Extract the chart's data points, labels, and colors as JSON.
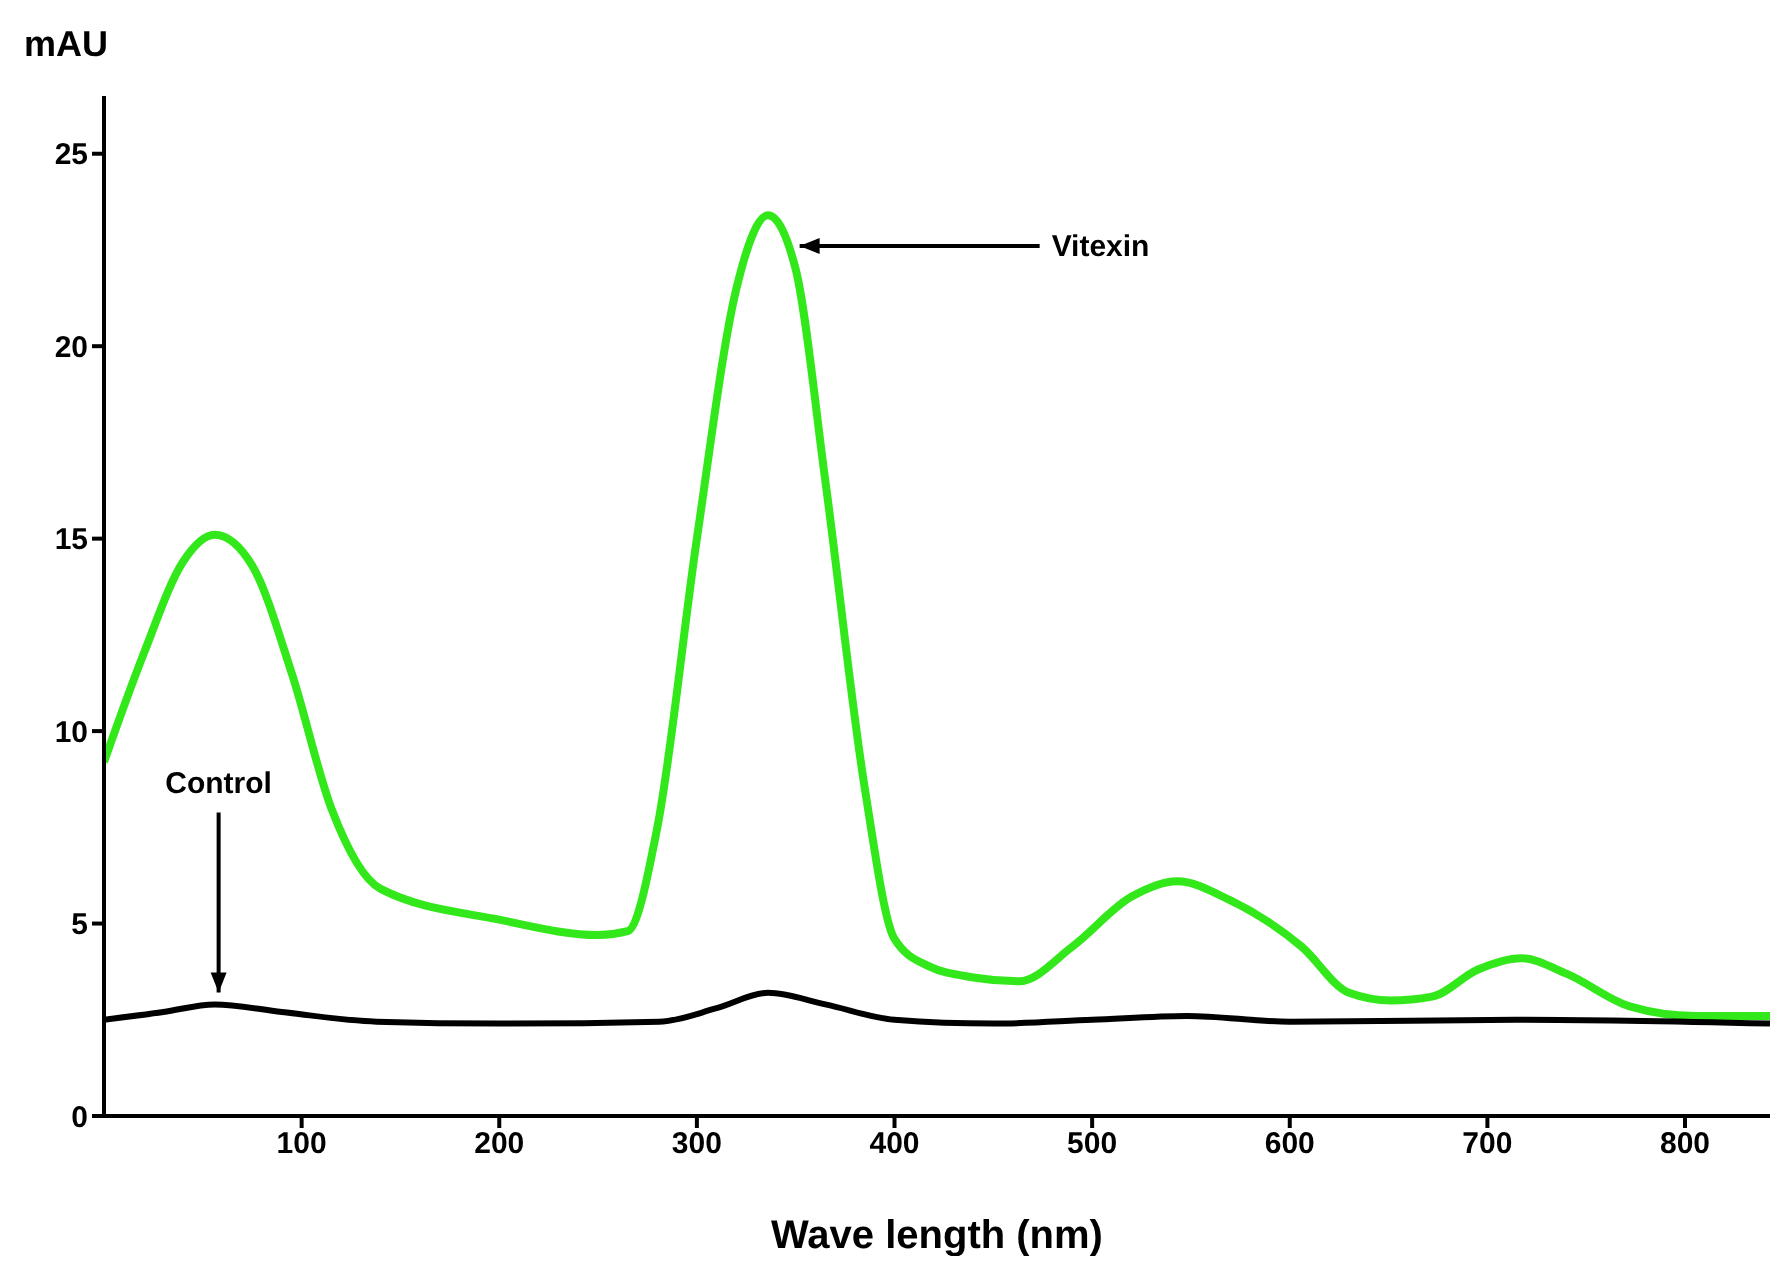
{
  "chart_data": {
    "type": "line",
    "xlabel": "Wave length (nm)",
    "ylabel": "mAU",
    "xlim": [
      0,
      843
    ],
    "xticks": [
      100,
      200,
      300,
      400,
      500,
      600,
      700,
      800
    ],
    "ylim": [
      0,
      26.5
    ],
    "yticks": [
      0,
      5,
      10,
      15,
      20,
      25
    ],
    "grid": false,
    "legend": false,
    "marker": "none",
    "line_style": "solid",
    "annotations": [
      {
        "text": "Vitexin",
        "x": 352,
        "y": 22.6
      },
      {
        "text": "Control",
        "x": 58,
        "y": 3.0
      }
    ],
    "series": [
      {
        "color": "#33e81a",
        "x": [
          0,
          20,
          40,
          56,
          75,
          95,
          115,
          140,
          200,
          250,
          265,
          280,
          300,
          320,
          336,
          350,
          365,
          385,
          400,
          417,
          440,
          463,
          490,
          520,
          543,
          570,
          606,
          630,
          651,
          672,
          695,
          717,
          740,
          772,
          805,
          843
        ],
        "values": [
          9.2,
          12.0,
          14.4,
          15.1,
          14.3,
          11.5,
          8.0,
          5.9,
          5.1,
          4.7,
          4.8,
          7.5,
          15.0,
          21.5,
          23.4,
          22.0,
          16.5,
          8.5,
          4.6,
          3.9,
          3.6,
          3.5,
          4.4,
          5.7,
          6.1,
          5.6,
          4.4,
          3.2,
          3.0,
          3.1,
          3.8,
          4.1,
          3.7,
          2.85,
          2.6,
          2.6
        ]
      },
      {
        "color": "#000000",
        "x": [
          0,
          30,
          56,
          90,
          138,
          200,
          281,
          310,
          336,
          365,
          400,
          450,
          500,
          548,
          600,
          717,
          843
        ],
        "values": [
          2.5,
          2.7,
          2.9,
          2.7,
          2.45,
          2.4,
          2.45,
          2.8,
          3.2,
          2.9,
          2.5,
          2.4,
          2.5,
          2.6,
          2.45,
          2.5,
          2.4
        ]
      }
    ]
  }
}
